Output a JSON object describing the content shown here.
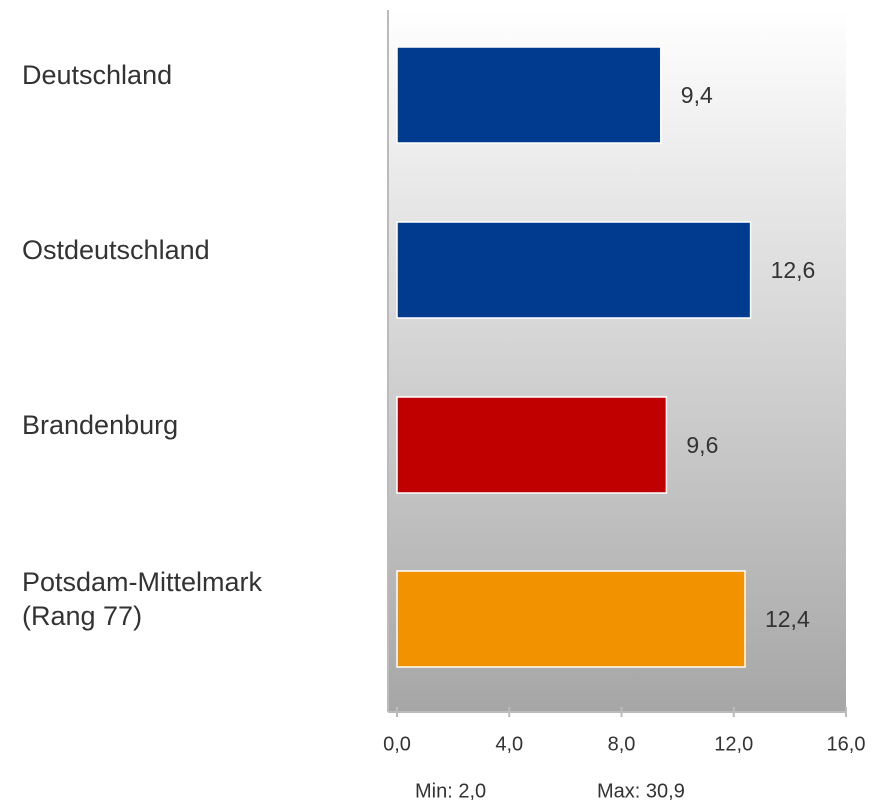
{
  "chart_data": {
    "type": "bar",
    "orientation": "horizontal",
    "categories": [
      "Deutschland",
      "Ostdeutschland",
      "Brandenburg",
      "Potsdam-Mittelmark\n(Rang 77)"
    ],
    "values": [
      9.4,
      12.6,
      9.6,
      12.4
    ],
    "value_labels": [
      "9,4",
      "12,6",
      "9,6",
      "12,4"
    ],
    "colors": [
      "#003b8f",
      "#003b8f",
      "#c00000",
      "#f39200"
    ],
    "xlim": [
      0,
      16
    ],
    "xticks": [
      {
        "value": 0,
        "label": "0,0"
      },
      {
        "value": 4,
        "label": "4,0"
      },
      {
        "value": 8,
        "label": "8,0"
      },
      {
        "value": 12,
        "label": "12,0"
      },
      {
        "value": 16,
        "label": "16,0"
      }
    ],
    "annotations": [
      "Min: 2,0",
      "Max: 30,9"
    ]
  }
}
